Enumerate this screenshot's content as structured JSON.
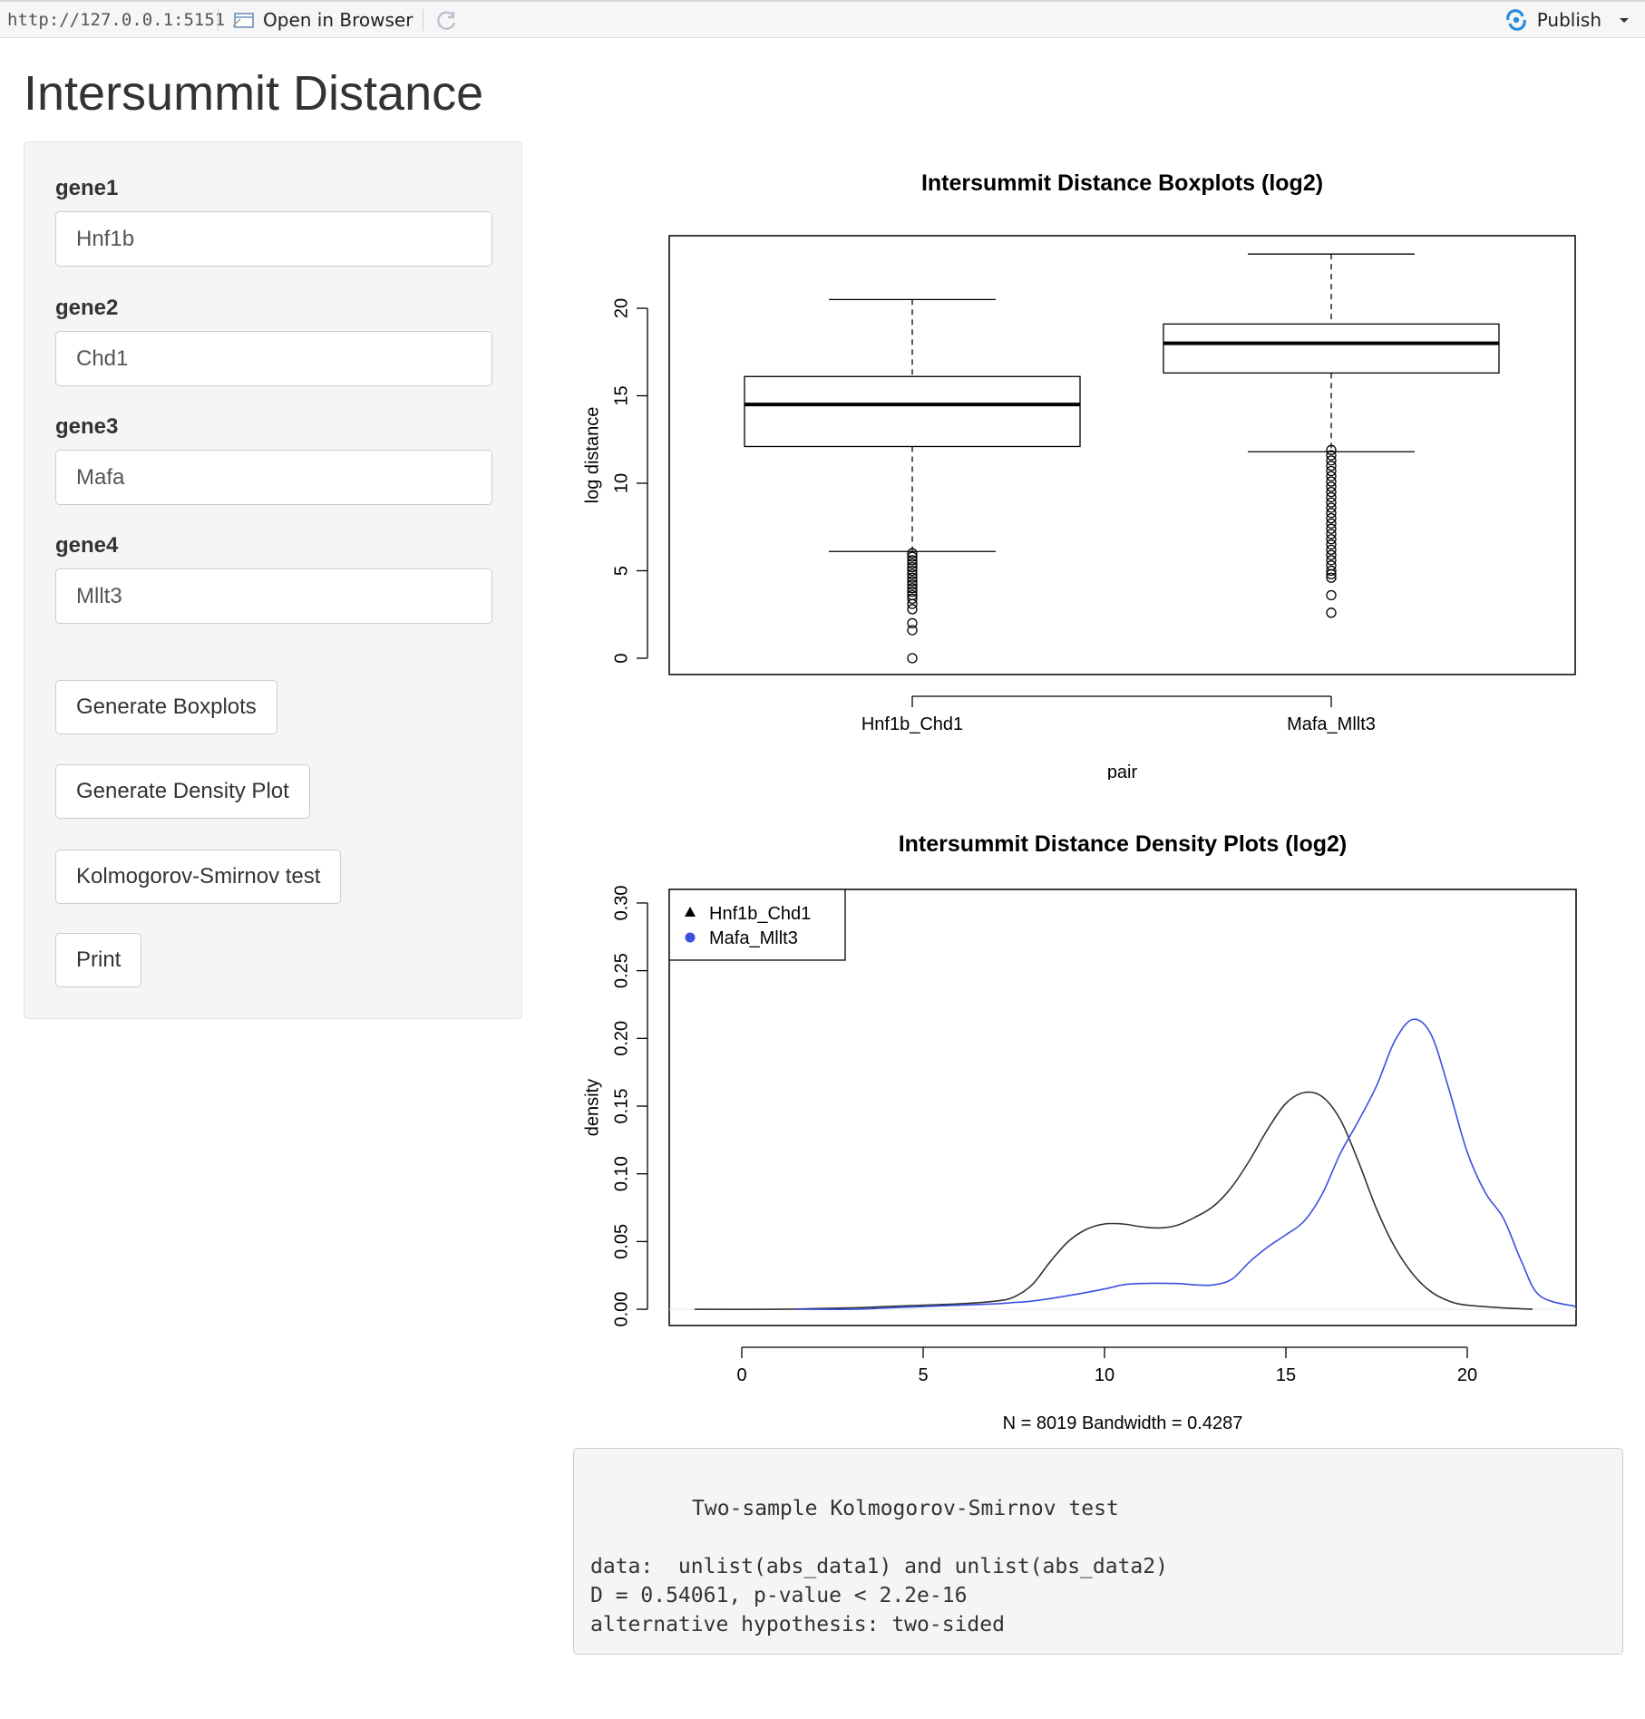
{
  "toolbar": {
    "url": "http://127.0.0.1:5151",
    "open_in_browser": "Open in Browser",
    "publish": "Publish"
  },
  "page": {
    "title": "Intersummit Distance"
  },
  "sidebar": {
    "fields": [
      {
        "label": "gene1",
        "value": "Hnf1b"
      },
      {
        "label": "gene2",
        "value": "Chd1"
      },
      {
        "label": "gene3",
        "value": "Mafa"
      },
      {
        "label": "gene4",
        "value": "Mllt3"
      }
    ],
    "buttons": {
      "boxplots": "Generate Boxplots",
      "density": "Generate Density Plot",
      "ks": "Kolmogorov-Smirnov test",
      "print": "Print"
    }
  },
  "chart_data": [
    {
      "type": "boxplot",
      "title": "Intersummit Distance Boxplots (log2)",
      "xlabel": "pair",
      "ylabel": "log distance",
      "ylim": [
        0,
        24
      ],
      "yticks": [
        0,
        5,
        10,
        15,
        20
      ],
      "categories": [
        "Hnf1b_Chd1",
        "Mafa_Mllt3"
      ],
      "boxes": [
        {
          "name": "Hnf1b_Chd1",
          "whisker_low": 6.1,
          "q1": 12.1,
          "median": 14.5,
          "q3": 16.1,
          "whisker_high": 20.5,
          "outliers": [
            0,
            1.6,
            2.0,
            2.8,
            3.1,
            3.4,
            3.6,
            3.8,
            4.0,
            4.2,
            4.4,
            4.6,
            4.8,
            5.0,
            5.2,
            5.4,
            5.6,
            5.8,
            6.0
          ]
        },
        {
          "name": "Mafa_Mllt3",
          "whisker_low": 11.8,
          "q1": 16.3,
          "median": 18.0,
          "q3": 19.1,
          "whisker_high": 23.1,
          "outliers": [
            2.6,
            3.6,
            4.6,
            4.8,
            5.0,
            5.3,
            5.6,
            5.9,
            6.2,
            6.5,
            6.8,
            7.1,
            7.4,
            7.7,
            8.0,
            8.3,
            8.6,
            8.9,
            9.2,
            9.5,
            9.8,
            10.1,
            10.4,
            10.7,
            11.0,
            11.3,
            11.6,
            11.9
          ]
        }
      ]
    },
    {
      "type": "line",
      "title": "Intersummit Distance Density Plots (log2)",
      "xlabel": "N = 8019   Bandwidth = 0.4287",
      "ylabel": "density",
      "xlim": [
        -2,
        23
      ],
      "ylim": [
        -0.012,
        0.31
      ],
      "xticks": [
        0,
        5,
        10,
        15,
        20
      ],
      "yticks": [
        "0.00",
        "0.05",
        "0.10",
        "0.15",
        "0.20",
        "0.25",
        "0.30"
      ],
      "legend_position": "top-left",
      "series": [
        {
          "name": "Hnf1b_Chd1",
          "color": "#333333",
          "legend_symbol": "triangle",
          "x": [
            -1.3,
            1.0,
            3.0,
            4.0,
            5.0,
            6.0,
            7.0,
            7.5,
            8.0,
            8.5,
            9.0,
            9.5,
            10.0,
            10.5,
            11.0,
            11.5,
            12.0,
            12.5,
            13.0,
            13.5,
            14.0,
            14.5,
            15.0,
            15.5,
            16.0,
            16.5,
            17.0,
            17.5,
            18.0,
            18.5,
            19.0,
            19.5,
            20.0,
            21.0,
            21.8
          ],
          "y": [
            0.0,
            0.0,
            0.001,
            0.002,
            0.003,
            0.004,
            0.006,
            0.009,
            0.018,
            0.035,
            0.05,
            0.059,
            0.063,
            0.063,
            0.061,
            0.06,
            0.062,
            0.068,
            0.076,
            0.09,
            0.11,
            0.133,
            0.152,
            0.16,
            0.157,
            0.14,
            0.109,
            0.074,
            0.046,
            0.026,
            0.013,
            0.006,
            0.003,
            0.001,
            0.0
          ]
        },
        {
          "name": "Mafa_Mllt3",
          "color": "#3b4fe0",
          "legend_symbol": "circle",
          "x": [
            1.5,
            3.0,
            4.0,
            5.0,
            6.0,
            7.0,
            7.5,
            8.0,
            9.0,
            10.0,
            10.5,
            11.0,
            12.0,
            12.5,
            13.0,
            13.5,
            14.0,
            14.5,
            15.0,
            15.5,
            16.0,
            16.5,
            17.0,
            17.5,
            18.0,
            18.5,
            19.0,
            19.5,
            20.0,
            20.5,
            21.0,
            21.5,
            22.0,
            23.0
          ],
          "y": [
            0.0,
            0.0,
            0.001,
            0.002,
            0.003,
            0.004,
            0.005,
            0.006,
            0.01,
            0.015,
            0.018,
            0.019,
            0.019,
            0.018,
            0.018,
            0.022,
            0.035,
            0.046,
            0.055,
            0.065,
            0.085,
            0.115,
            0.139,
            0.165,
            0.198,
            0.214,
            0.203,
            0.162,
            0.116,
            0.086,
            0.067,
            0.035,
            0.01,
            0.002
          ]
        }
      ]
    }
  ],
  "ks_output": {
    "title": "Two-sample Kolmogorov-Smirnov test",
    "lines": [
      "data:  unlist(abs_data1) and unlist(abs_data2)",
      "D = 0.54061, p-value < 2.2e-16",
      "alternative hypothesis: two-sided"
    ]
  }
}
